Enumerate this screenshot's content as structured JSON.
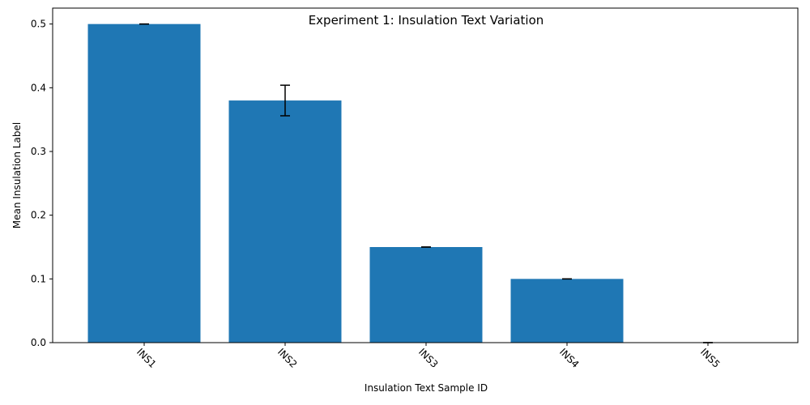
{
  "chart_data": {
    "type": "bar",
    "title": "Experiment 1: Insulation Text Variation",
    "xlabel": "Insulation Text Sample ID",
    "ylabel": "Mean Insulation Label",
    "categories": [
      "INS1",
      "INS2",
      "INS3",
      "INS4",
      "INS5"
    ],
    "values": [
      0.5,
      0.38,
      0.15,
      0.1,
      0.0
    ],
    "errors": [
      0.0,
      0.024,
      0.0,
      0.0,
      0.0
    ],
    "ylim": [
      0,
      0.525
    ],
    "yticks": [
      0.0,
      0.1,
      0.2,
      0.3,
      0.4,
      0.5
    ],
    "ytick_labels": [
      "0.0",
      "0.1",
      "0.2",
      "0.3",
      "0.4",
      "0.5"
    ],
    "x_tick_rotation_deg": 45,
    "grid": false,
    "legend": "none",
    "bar_color": "#1f77b4",
    "error_bar_color": "#000000"
  }
}
